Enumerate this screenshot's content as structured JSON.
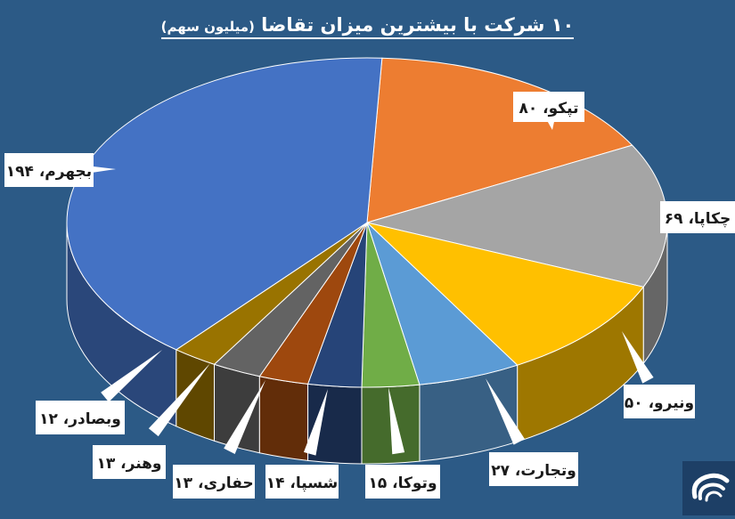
{
  "chart_data": {
    "type": "pie",
    "title": "۱۰ شرکت با بیشترین میزان تقاضا",
    "unit": "(میلیون سهم)",
    "slices": [
      {
        "label": "تپکو",
        "value": 80,
        "value_text": "۸۰",
        "color": "#ed7d31"
      },
      {
        "label": "چکاپا",
        "value": 69,
        "value_text": "۶۹",
        "color": "#a5a5a5"
      },
      {
        "label": "ونیرو",
        "value": 50,
        "value_text": "۵۰",
        "color": "#ffc000"
      },
      {
        "label": "وتجارت",
        "value": 27,
        "value_text": "۲۷",
        "color": "#5b9bd5"
      },
      {
        "label": "وتوکا",
        "value": 15,
        "value_text": "۱۵",
        "color": "#70ad47"
      },
      {
        "label": "شسپا",
        "value": 14,
        "value_text": "۱۴",
        "color": "#264478"
      },
      {
        "label": "حفاری",
        "value": 13,
        "value_text": "۱۳",
        "color": "#9e480e"
      },
      {
        "label": "وهنر",
        "value": 13,
        "value_text": "۱۳",
        "color": "#636363"
      },
      {
        "label": "وبصادر",
        "value": 12,
        "value_text": "۱۲",
        "color": "#997300"
      },
      {
        "label": "بجهرم",
        "value": 194,
        "value_text": "۱۹۴",
        "color": "#4472c4"
      }
    ]
  }
}
